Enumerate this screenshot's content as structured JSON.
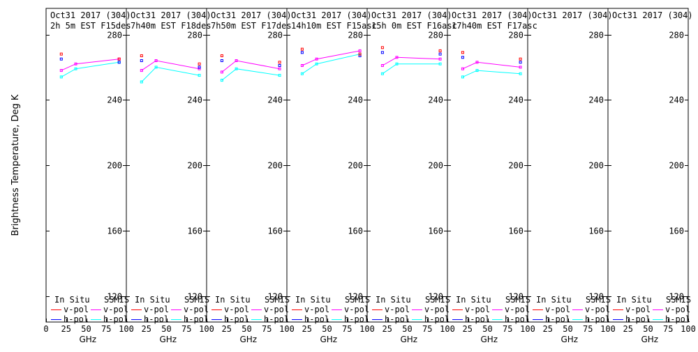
{
  "chart_data": {
    "type": "line",
    "ylabel": "Brightness Temperature, Deg K",
    "xlabel": "GHz",
    "xlim": [
      0,
      100
    ],
    "ylim": [
      104,
      296
    ],
    "yticks": [
      120,
      160,
      200,
      240,
      280
    ],
    "xticks": [
      0,
      25,
      50,
      75,
      100
    ],
    "xtick_labels": [
      "0",
      "25",
      "50",
      "75",
      "100"
    ],
    "grid": false,
    "colors": {
      "insitu_v": "#ff0000",
      "insitu_h": "#0000ff",
      "ssmis_v": "#ff00ff",
      "ssmis_h": "#00ffff"
    },
    "legend": {
      "insitu_label": "In Situ",
      "ssmis_label": "SSMIS",
      "vpol_label": "v-pol",
      "hpol_label": "h-pol"
    },
    "panels": [
      {
        "date": "Oct31 2017 (304)",
        "time": "2h 5m  EST F15des",
        "insitu_v": [
          {
            "x": 19,
            "y": 268
          },
          {
            "x": 91,
            "y": 265
          }
        ],
        "insitu_h": [
          {
            "x": 19,
            "y": 265
          },
          {
            "x": 91,
            "y": 263
          }
        ],
        "ssmis_v": [
          {
            "x": 19,
            "y": 258
          },
          {
            "x": 37,
            "y": 262
          },
          {
            "x": 91,
            "y": 265
          }
        ],
        "ssmis_h": [
          {
            "x": 19,
            "y": 254
          },
          {
            "x": 37,
            "y": 259
          },
          {
            "x": 91,
            "y": 263
          }
        ]
      },
      {
        "date": "Oct31 2017 (304)",
        "time": "7h40m  EST F18des",
        "insitu_v": [
          {
            "x": 19,
            "y": 267
          },
          {
            "x": 91,
            "y": 262
          }
        ],
        "insitu_h": [
          {
            "x": 19,
            "y": 264
          },
          {
            "x": 91,
            "y": 260
          }
        ],
        "ssmis_v": [
          {
            "x": 19,
            "y": 258
          },
          {
            "x": 37,
            "y": 264
          },
          {
            "x": 91,
            "y": 259
          }
        ],
        "ssmis_h": [
          {
            "x": 19,
            "y": 251
          },
          {
            "x": 37,
            "y": 260
          },
          {
            "x": 91,
            "y": 255
          }
        ]
      },
      {
        "date": "Oct31 2017 (304)",
        "time": "7h50m  EST F17des",
        "insitu_v": [
          {
            "x": 19,
            "y": 267
          },
          {
            "x": 91,
            "y": 263
          }
        ],
        "insitu_h": [
          {
            "x": 19,
            "y": 264
          },
          {
            "x": 91,
            "y": 261
          }
        ],
        "ssmis_v": [
          {
            "x": 19,
            "y": 257
          },
          {
            "x": 37,
            "y": 264
          },
          {
            "x": 91,
            "y": 259
          }
        ],
        "ssmis_h": [
          {
            "x": 19,
            "y": 252
          },
          {
            "x": 37,
            "y": 259
          },
          {
            "x": 91,
            "y": 255
          }
        ]
      },
      {
        "date": "Oct31 2017 (304)",
        "time": "14h10m  EST F15asc",
        "insitu_v": [
          {
            "x": 19,
            "y": 271
          },
          {
            "x": 91,
            "y": 268
          }
        ],
        "insitu_h": [
          {
            "x": 19,
            "y": 269
          },
          {
            "x": 91,
            "y": 267
          }
        ],
        "ssmis_v": [
          {
            "x": 19,
            "y": 261
          },
          {
            "x": 37,
            "y": 265
          },
          {
            "x": 91,
            "y": 270
          }
        ],
        "ssmis_h": [
          {
            "x": 19,
            "y": 256
          },
          {
            "x": 37,
            "y": 262
          },
          {
            "x": 91,
            "y": 268
          }
        ]
      },
      {
        "date": "Oct31 2017 (304)",
        "time": "15h 0m  EST F16asc",
        "insitu_v": [
          {
            "x": 19,
            "y": 272
          },
          {
            "x": 91,
            "y": 270
          }
        ],
        "insitu_h": [
          {
            "x": 19,
            "y": 269
          },
          {
            "x": 91,
            "y": 268
          }
        ],
        "ssmis_v": [
          {
            "x": 19,
            "y": 261
          },
          {
            "x": 37,
            "y": 266
          },
          {
            "x": 91,
            "y": 265
          }
        ],
        "ssmis_h": [
          {
            "x": 19,
            "y": 256
          },
          {
            "x": 37,
            "y": 262
          },
          {
            "x": 91,
            "y": 262
          }
        ]
      },
      {
        "date": "Oct31 2017 (304)",
        "time": "17h40m  EST F17asc",
        "insitu_v": [
          {
            "x": 19,
            "y": 269
          },
          {
            "x": 91,
            "y": 265
          }
        ],
        "insitu_h": [
          {
            "x": 19,
            "y": 266
          },
          {
            "x": 91,
            "y": 263
          }
        ],
        "ssmis_v": [
          {
            "x": 19,
            "y": 259
          },
          {
            "x": 37,
            "y": 263
          },
          {
            "x": 91,
            "y": 260
          }
        ],
        "ssmis_h": [
          {
            "x": 19,
            "y": 254
          },
          {
            "x": 37,
            "y": 258
          },
          {
            "x": 91,
            "y": 256
          }
        ]
      },
      {
        "date": "Oct31 2017 (304)",
        "time": "",
        "insitu_v": [],
        "insitu_h": [],
        "ssmis_v": [],
        "ssmis_h": []
      },
      {
        "date": "Oct31 2017 (304)",
        "time": "",
        "insitu_v": [],
        "insitu_h": [],
        "ssmis_v": [],
        "ssmis_h": []
      }
    ]
  }
}
